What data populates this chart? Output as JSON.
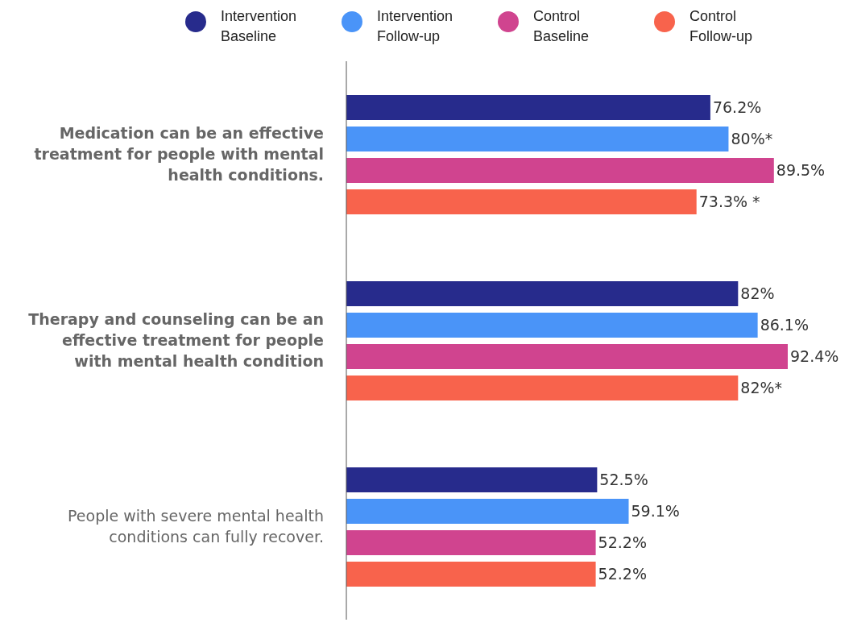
{
  "chart_data": {
    "type": "bar",
    "orientation": "horizontal",
    "categories": [
      "Medication can be an effective treatment for people with mental health conditions.",
      "Therapy and counseling can be an effective treatment for people with mental health condition",
      "People with severe mental health conditions can fully recover."
    ],
    "series": [
      {
        "name": "Intervention Baseline",
        "color": "#272b8c",
        "values": [
          76.2,
          82,
          52.5
        ],
        "value_labels": [
          "76.2%",
          "82%",
          "52.5%"
        ]
      },
      {
        "name": "Intervention Follow-up",
        "color": "#4a94f8",
        "values": [
          80,
          86.1,
          59.1
        ],
        "value_labels": [
          "80%*",
          "86.1%",
          "59.1%"
        ]
      },
      {
        "name": "Control Baseline",
        "color": "#d0448f",
        "values": [
          89.5,
          92.4,
          52.2
        ],
        "value_labels": [
          "89.5%",
          "92.4%",
          "52.2%"
        ]
      },
      {
        "name": "Control Follow-up",
        "color": "#f8634c",
        "values": [
          73.3,
          82,
          52.2
        ],
        "value_labels": [
          "73.3% *",
          "82%*",
          "52.2%"
        ]
      }
    ],
    "legend": "top",
    "grid": false
  }
}
